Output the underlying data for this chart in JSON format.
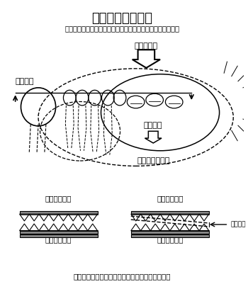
{
  "title": "義歯設計の困難性",
  "subtitle": "（義歯は咬むと沈下して一点を中心に回転する傾向がある）",
  "label_bite_force": "＜咬む力＞",
  "label_float": "＜浮上＞",
  "label_sink": "＜沈下＞",
  "label_upper_schema": "＜上の模式図＞",
  "label_upper_teeth_left": "＜上の歯列＞",
  "label_upper_teeth_right": "＜上の歯列＞",
  "label_lower_teeth_left": "＜下の歯列＞",
  "label_lower_teeth_right": "＜下の歯列＞",
  "label_missing": "歯の欠損",
  "footer": "（右の状態では左のときと比べて回転しやすい）",
  "bg_color": "#ffffff",
  "text_color": "#000000",
  "line_color": "#000000"
}
